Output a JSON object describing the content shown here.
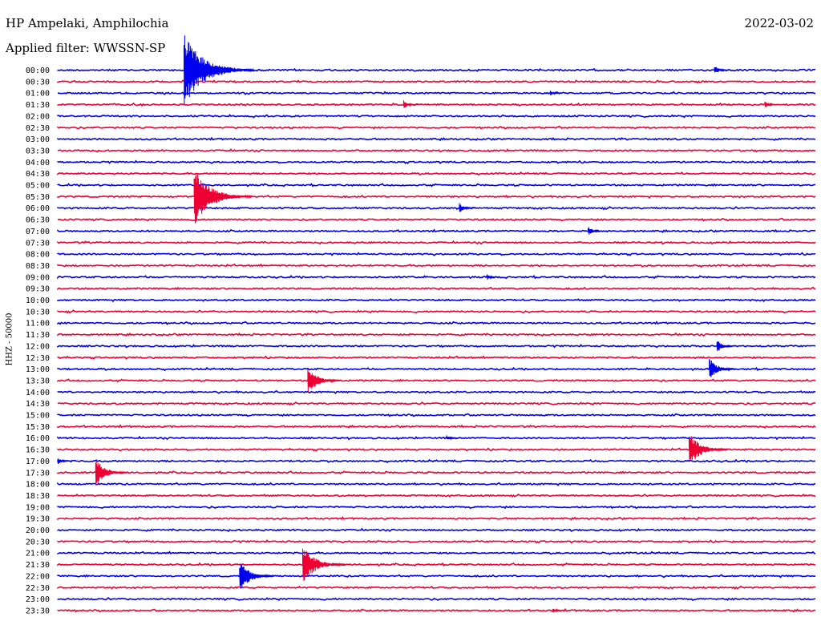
{
  "header": {
    "station": "HP Ampelaki, Amphilochia",
    "date": "2022-03-02",
    "filter": "Applied filter: WWSSN-SP"
  },
  "chart_data": {
    "type": "line",
    "title": "HP Ampelaki, Amphilochia",
    "ylabel": "HHZ - 50000",
    "y_tick_labels": [
      "00:00",
      "00:30",
      "01:00",
      "01:30",
      "02:00",
      "02:30",
      "03:00",
      "03:30",
      "04:00",
      "04:30",
      "05:00",
      "05:30",
      "06:00",
      "06:30",
      "07:00",
      "07:30",
      "08:00",
      "08:30",
      "09:00",
      "09:30",
      "10:00",
      "10:30",
      "11:00",
      "11:30",
      "12:00",
      "12:30",
      "13:00",
      "13:30",
      "14:00",
      "14:30",
      "15:00",
      "15:30",
      "16:00",
      "16:30",
      "17:00",
      "17:30",
      "18:00",
      "18:30",
      "19:00",
      "19:30",
      "20:00",
      "20:30",
      "21:00",
      "21:30",
      "22:00",
      "22:30",
      "23:00",
      "23:30"
    ],
    "trace_minutes": 30,
    "colors": {
      "even": "#0000ee",
      "odd": "#ee0033"
    },
    "events": [
      {
        "trace": "00:00",
        "minute": 5.0,
        "amplitude": 5.0
      },
      {
        "trace": "00:00",
        "minute": 26.0,
        "amplitude": 0.7
      },
      {
        "trace": "01:00",
        "minute": 19.5,
        "amplitude": 0.4
      },
      {
        "trace": "01:30",
        "minute": 13.7,
        "amplitude": 0.6
      },
      {
        "trace": "01:30",
        "minute": 28.0,
        "amplitude": 0.5
      },
      {
        "trace": "05:30",
        "minute": 5.4,
        "amplitude": 4.0
      },
      {
        "trace": "06:00",
        "minute": 15.9,
        "amplitude": 0.7
      },
      {
        "trace": "07:00",
        "minute": 21.0,
        "amplitude": 0.7
      },
      {
        "trace": "09:00",
        "minute": 17.0,
        "amplitude": 0.4
      },
      {
        "trace": "12:00",
        "minute": 26.1,
        "amplitude": 0.9
      },
      {
        "trace": "13:00",
        "minute": 25.8,
        "amplitude": 1.6
      },
      {
        "trace": "13:30",
        "minute": 9.9,
        "amplitude": 2.0
      },
      {
        "trace": "16:00",
        "minute": 15.4,
        "amplitude": 0.4
      },
      {
        "trace": "16:30",
        "minute": 25.0,
        "amplitude": 2.5
      },
      {
        "trace": "17:00",
        "minute": 0.0,
        "amplitude": 0.5
      },
      {
        "trace": "17:30",
        "minute": 1.5,
        "amplitude": 2.0
      },
      {
        "trace": "21:30",
        "minute": 9.7,
        "amplitude": 2.8
      },
      {
        "trace": "22:00",
        "minute": 7.2,
        "amplitude": 2.2
      },
      {
        "trace": "23:30",
        "minute": 19.6,
        "amplitude": 0.4
      }
    ]
  }
}
